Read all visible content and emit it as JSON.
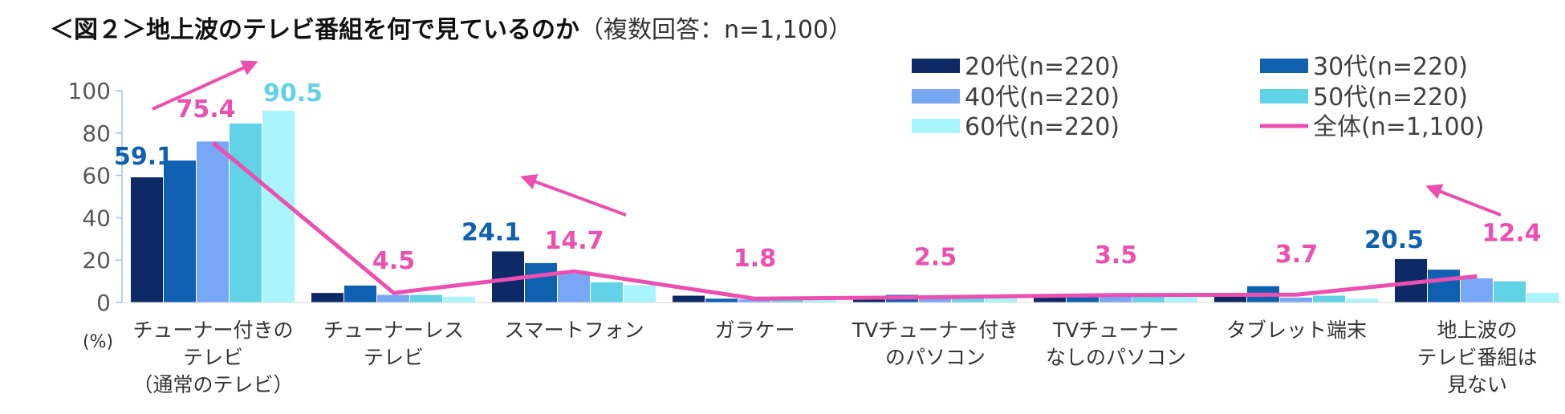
{
  "title": {
    "main": "＜図２＞地上波のテレビ番組を何で見ているのか",
    "sub": "（複数回答：n=1,100）"
  },
  "chart_data": {
    "type": "bar",
    "title": "＜図２＞地上波のテレビ番組を何で見ているのか（複数回答：n=1,100）",
    "unit_label": "(%)",
    "ylim": [
      0,
      100
    ],
    "yticks": [
      "0",
      "20",
      "40",
      "60",
      "80",
      "100"
    ],
    "categories": [
      [
        "チューナー付きの",
        "テレビ",
        "（通常のテレビ）"
      ],
      [
        "チューナーレス",
        "テレビ"
      ],
      [
        "スマートフォン"
      ],
      [
        "ガラケー"
      ],
      [
        "TVチューナー付き",
        "のパソコン"
      ],
      [
        "TVチューナー",
        "なしのパソコン"
      ],
      [
        "タブレット端末"
      ],
      [
        "地上波の",
        "テレビ番組は",
        "見ない"
      ]
    ],
    "series": [
      {
        "name": "20代(n=220)",
        "color": "#0d2a66",
        "values": [
          59.1,
          4.5,
          24.1,
          3.2,
          1.4,
          2.7,
          3.2,
          20.5
        ]
      },
      {
        "name": "30代(n=220)",
        "color": "#1060b0",
        "values": [
          67.0,
          8.0,
          18.6,
          1.8,
          3.6,
          3.2,
          7.7,
          15.5
        ]
      },
      {
        "name": "40代(n=220)",
        "color": "#78a8f5",
        "values": [
          76.0,
          3.6,
          13.6,
          1.4,
          3.2,
          4.1,
          2.3,
          11.4
        ]
      },
      {
        "name": "50代(n=220)",
        "color": "#62d2e6",
        "values": [
          84.5,
          3.6,
          9.5,
          1.4,
          2.3,
          3.6,
          3.2,
          10.0
        ]
      },
      {
        "name": "60代(n=220)",
        "color": "#a8f6fb",
        "values": [
          90.5,
          2.7,
          8.2,
          1.4,
          2.3,
          3.6,
          1.8,
          4.5
        ]
      }
    ],
    "line_series": {
      "name": "全体(n=1,100)",
      "color": "#ec4fb0",
      "values": [
        75.4,
        4.5,
        14.7,
        1.8,
        2.5,
        3.5,
        3.7,
        12.4
      ],
      "labels": [
        "75.4",
        "4.5",
        "14.7",
        "1.8",
        "2.5",
        "3.5",
        "3.7",
        "12.4"
      ]
    },
    "highlight_labels": [
      {
        "text": "59.1",
        "category": 0,
        "series": 0,
        "color": "#1060b0"
      },
      {
        "text": "90.5",
        "category": 0,
        "series": 4,
        "color": "#62d2e6"
      },
      {
        "text": "24.1",
        "category": 2,
        "series": 0,
        "color": "#1060b0"
      },
      {
        "text": "20.5",
        "category": 7,
        "series": 0,
        "color": "#1060b0"
      }
    ],
    "arrows": [
      {
        "category": 0,
        "direction": "up-right",
        "color": "#ec4fb0"
      },
      {
        "category": 2,
        "direction": "up-left",
        "color": "#ec4fb0"
      },
      {
        "category": 7,
        "direction": "up-left",
        "color": "#ec4fb0"
      }
    ],
    "legend": {
      "position": "top-right",
      "columns": 2
    }
  }
}
